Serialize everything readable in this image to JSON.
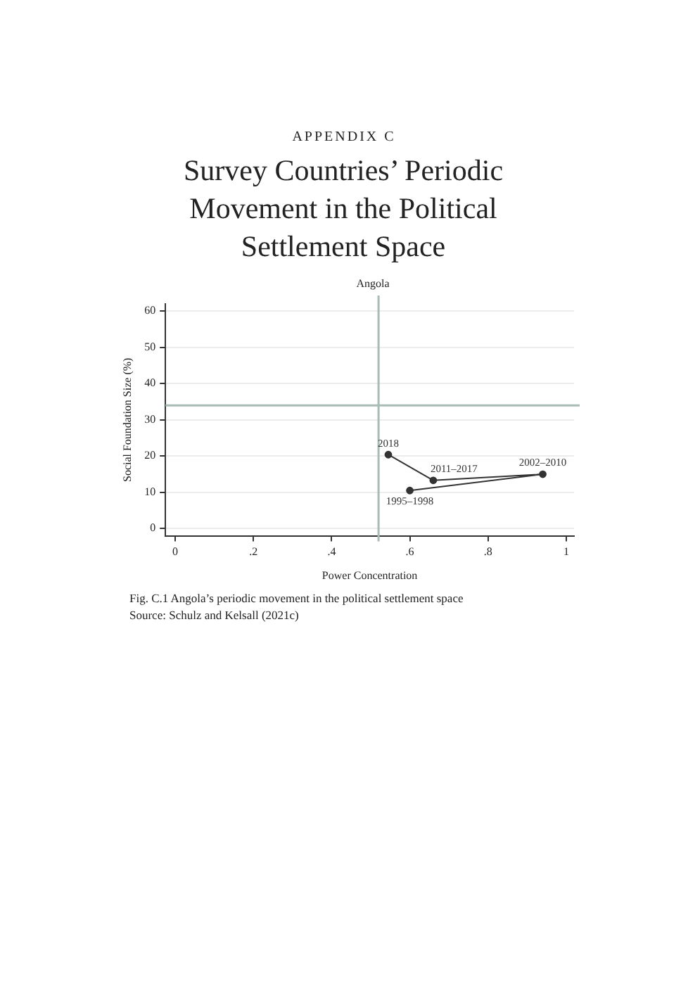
{
  "chart_data": {
    "type": "line",
    "title": "Survey Countries’ Periodic Movement in the Political Settlement Space",
    "subtitle": "Angola",
    "xlabel": "Power Concentration",
    "ylabel": "Social Foundation Size (%)",
    "x": [
      0.6,
      0.94,
      0.66,
      0.545
    ],
    "series": [
      {
        "color": "#333333",
        "values": [
          10.5,
          15,
          13.3,
          20.4
        ]
      }
    ],
    "xlim": [
      -0.025,
      1.02
    ],
    "xticks": [
      0,
      {
        "value": 0.2,
        "label": ".2"
      },
      {
        "value": 0.4,
        "label": ".4"
      },
      {
        "value": 0.6,
        "label": ".6"
      },
      {
        "value": 0.8,
        "label": ".8"
      },
      1
    ],
    "ylim": [
      -2,
      62
    ],
    "yticks": [
      0,
      10,
      20,
      30,
      40,
      50,
      60
    ],
    "grid": "y",
    "marker": "circle",
    "line_style": "solid",
    "legend": false,
    "ref_lines": [
      {
        "axis": "x",
        "value": 0.52,
        "color": "#a9bbb6"
      },
      {
        "axis": "y",
        "value": 34,
        "color": "#a9bbb6"
      }
    ],
    "annotations": [
      "APPENDIX C",
      {
        "text": "1995–1998",
        "x": 0.6,
        "y": 10.5
      },
      {
        "text": "2002–2010",
        "x": 0.94,
        "y": 15
      },
      {
        "text": "2011–2017",
        "x": 0.66,
        "y": 13.3
      },
      {
        "text": "2018",
        "x": 0.545,
        "y": 20.4
      },
      "Fig. C.1  Angola’s periodic movement in the political settlement space",
      "Source: Schulz and Kelsall (2021c)"
    ]
  }
}
